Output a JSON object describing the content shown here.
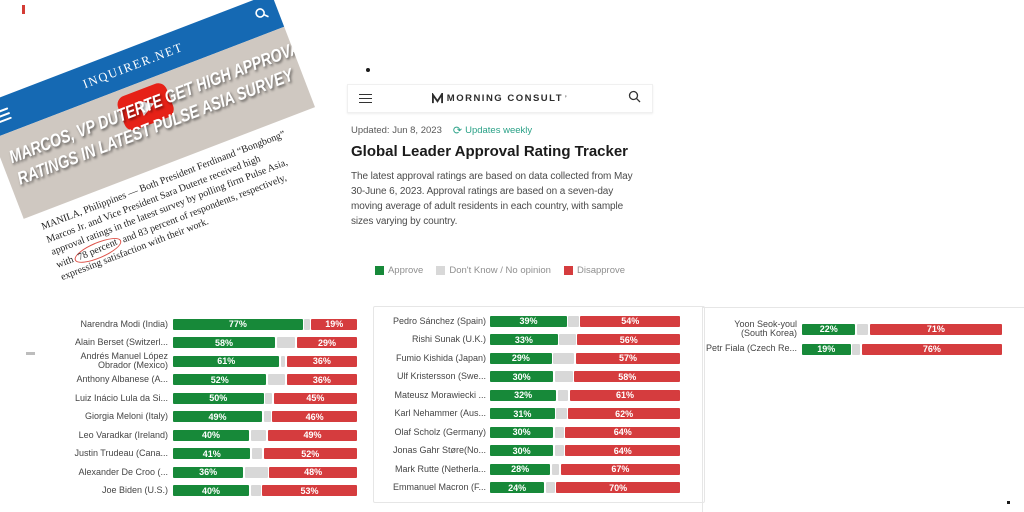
{
  "colors": {
    "approve_green": "#178939",
    "disapprove_red": "#d53c3e",
    "neutral_gray": "#d8d8d8",
    "inquirer_blue": "#1569b3",
    "youtube_red": "#e62117",
    "link_teal": "#2aa187",
    "annotation_red": "#d9443a"
  },
  "inquirer": {
    "brand": "INQUIRER.NET",
    "headline_lines": [
      "MARCOS, VP DUTERTE GET HIGH APPROVAL",
      "RATINGS IN LATEST PULSE ASIA SURVEY"
    ],
    "body_lines": [
      "MANILA, Philippines — Both President Ferdinand “Bongbong”",
      "Marcos Jr. and Vice President Sara Duterte received high",
      "approval ratings in the latest survey by polling firm Pulse Asia,",
      "with 78 percent and 83 percent of respondents, respectively,",
      "expressing satisfaction with their work."
    ],
    "circled_text": "78 percent",
    "icons": {
      "menu": "hamburger",
      "search": "magnifier",
      "video": "youtube-play"
    }
  },
  "morning_consult": {
    "brand": "MORNING CONSULT",
    "trademark": "’",
    "updated": "Updated: Jun 8, 2023",
    "refresh_icon": "⟳",
    "updates_weekly": "Updates weekly",
    "title": "Global Leader Approval Rating Tracker",
    "description_lines": [
      "The latest approval ratings are based on data collected from May",
      "30-June 6, 2023. Approval ratings are based on a seven-day",
      "moving average of adult residents in each country, with sample",
      "sizes varying by country."
    ],
    "legend": [
      {
        "label": "Approve",
        "color": "#178939"
      },
      {
        "label": "Don't Know / No opinion",
        "color": "#d8d8d8"
      },
      {
        "label": "Disapprove",
        "color": "#d53c3e"
      }
    ],
    "icons": {
      "menu": "hamburger",
      "search": "magnifier",
      "logo": "mc-check-m"
    }
  },
  "chart_data": {
    "type": "bar",
    "stacked": true,
    "unit": "%",
    "title": "Global Leader Approval Rating Tracker",
    "series_names": [
      "Approve",
      "Don't Know / No opinion",
      "Disapprove"
    ],
    "neutral_is_remainder_to_100": true,
    "columns": [
      {
        "leaders": [
          {
            "name": "Narendra Modi (India)",
            "approve": 77,
            "disapprove": 19
          },
          {
            "name": "Alain Berset (Switzerl...",
            "approve": 58,
            "disapprove": 29
          },
          {
            "name": "Andrés Manuel López\nObrador (Mexico)",
            "approve": 61,
            "disapprove": 36
          },
          {
            "name": "Anthony Albanese (A...",
            "approve": 52,
            "disapprove": 36
          },
          {
            "name": "Luiz Inácio Lula da Si...",
            "approve": 50,
            "disapprove": 45
          },
          {
            "name": "Giorgia Meloni (Italy)",
            "approve": 49,
            "disapprove": 46
          },
          {
            "name": "Leo Varadkar (Ireland)",
            "approve": 40,
            "disapprove": 49
          },
          {
            "name": "Justin Trudeau (Cana...",
            "approve": 41,
            "disapprove": 52
          },
          {
            "name": "Alexander De Croo (...",
            "approve": 36,
            "disapprove": 48
          },
          {
            "name": "Joe Biden (U.S.)",
            "approve": 40,
            "disapprove": 53
          }
        ]
      },
      {
        "leaders": [
          {
            "name": "Pedro Sánchez (Spain)",
            "approve": 39,
            "disapprove": 54
          },
          {
            "name": "Rishi Sunak (U.K.)",
            "approve": 33,
            "disapprove": 56
          },
          {
            "name": "Fumio Kishida (Japan)",
            "approve": 29,
            "disapprove": 57
          },
          {
            "name": "Ulf Kristersson (Swe...",
            "approve": 30,
            "disapprove": 58
          },
          {
            "name": "Mateusz Morawiecki ...",
            "approve": 32,
            "disapprove": 61
          },
          {
            "name": "Karl Nehammer (Aus...",
            "approve": 31,
            "disapprove": 62
          },
          {
            "name": "Olaf Scholz (Germany)",
            "approve": 30,
            "disapprove": 64
          },
          {
            "name": "Jonas Gahr Støre(No...",
            "approve": 30,
            "disapprove": 64
          },
          {
            "name": "Mark Rutte (Netherla...",
            "approve": 28,
            "disapprove": 67
          },
          {
            "name": "Emmanuel Macron (F...",
            "approve": 24,
            "disapprove": 70
          }
        ]
      },
      {
        "leaders": [
          {
            "name": "Yoon Seok-youl\n(South Korea)",
            "approve": 22,
            "disapprove": 71
          },
          {
            "name": "Petr Fiala (Czech Re...",
            "approve": 19,
            "disapprove": 76
          }
        ]
      }
    ]
  }
}
